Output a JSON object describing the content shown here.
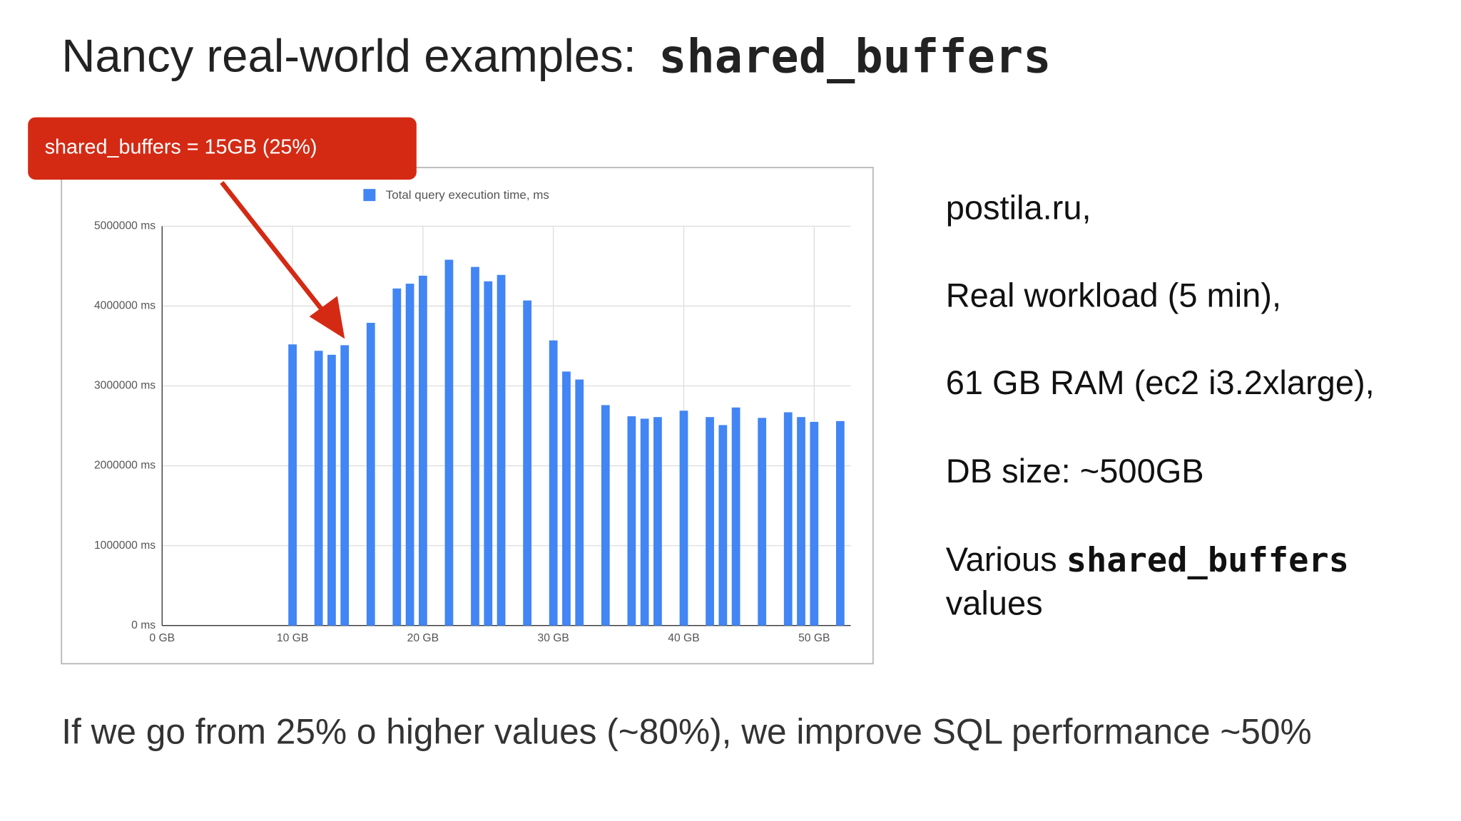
{
  "title": {
    "text": "Nancy real-world examples:",
    "code": "shared_buffers"
  },
  "callout": "shared_buffers = 15GB (25%)",
  "notes": [
    "postila.ru,",
    "Real workload (5 min),",
    "61 GB RAM (ec2 i3.2xlarge),",
    "DB size: ~500GB"
  ],
  "last_note": {
    "text": "Various",
    "code": "shared_buffers",
    "tail": "values"
  },
  "conclusion": "If we go from 25% o higher values (~80%), we improve SQL performance ~50%",
  "chart_data": {
    "type": "bar",
    "x": [
      10,
      12,
      13,
      14,
      16,
      18,
      19,
      20,
      22,
      24,
      25,
      26,
      28,
      30,
      31,
      32,
      34,
      36,
      37,
      38,
      40,
      42,
      43,
      44,
      46,
      48,
      49,
      50,
      52
    ],
    "series": [
      {
        "name": "Total query execution time, ms",
        "color": "#4285f4",
        "values": [
          3520000,
          3440000,
          3390000,
          3510000,
          3790000,
          4220000,
          4280000,
          4380000,
          4580000,
          4490000,
          4310000,
          4390000,
          4070000,
          3570000,
          3180000,
          3080000,
          2760000,
          2620000,
          2590000,
          2610000,
          2690000,
          2610000,
          2510000,
          2730000,
          2600000,
          2670000,
          2610000,
          2550000,
          2560000
        ]
      }
    ],
    "xlim": [
      0,
      52.8
    ],
    "ylim": [
      0,
      5000000
    ],
    "xticks": [
      {
        "value": 0,
        "label": "0 GB"
      },
      {
        "value": 10,
        "label": "10 GB"
      },
      {
        "value": 20,
        "label": "20 GB"
      },
      {
        "value": 30,
        "label": "30 GB"
      },
      {
        "value": 40,
        "label": "40 GB"
      },
      {
        "value": 50,
        "label": "50 GB"
      }
    ],
    "yticks": [
      {
        "value": 0,
        "label": "0 ms"
      },
      {
        "value": 1000000,
        "label": "1000000 ms"
      },
      {
        "value": 2000000,
        "label": "2000000 ms"
      },
      {
        "value": 3000000,
        "label": "3000000 ms"
      },
      {
        "value": 4000000,
        "label": "4000000 ms"
      },
      {
        "value": 5000000,
        "label": "5000000 ms"
      }
    ],
    "grid": true
  }
}
